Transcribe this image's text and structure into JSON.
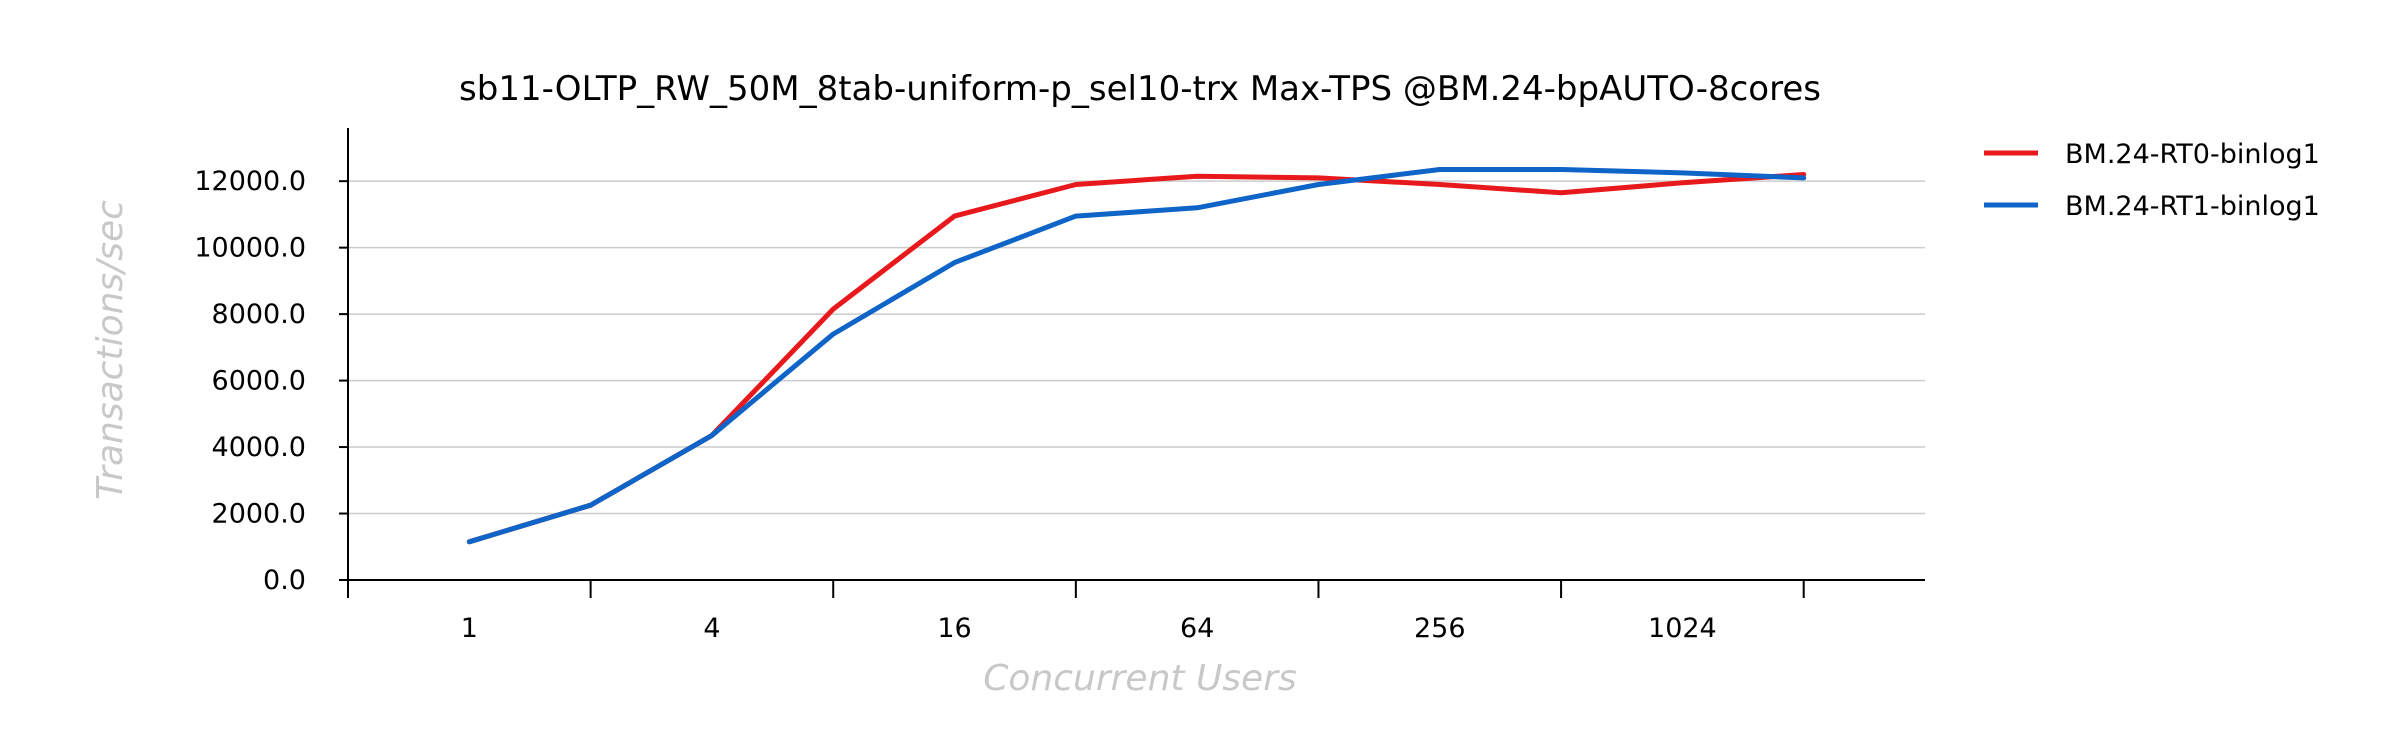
{
  "chart_data": {
    "type": "line",
    "title": "sb11-OLTP_RW_50M_8tab-uniform-p_sel10-trx Max-TPS @BM.24-bpAUTO-8cores",
    "xlabel": "Concurrent Users",
    "ylabel": "Transactions/sec",
    "x_scale": "log2",
    "x": [
      1,
      2,
      4,
      8,
      16,
      32,
      64,
      128,
      256,
      512,
      1024,
      2048
    ],
    "x_tick_labels": [
      "1",
      "4",
      "16",
      "64",
      "256",
      "1024"
    ],
    "x_tick_values": [
      1,
      4,
      16,
      64,
      256,
      1024
    ],
    "x_minor_ticks": [
      0.5,
      2,
      8,
      32,
      128,
      512,
      2048
    ],
    "xlim": [
      0.5,
      4096
    ],
    "y_ticks": [
      0,
      2000,
      4000,
      6000,
      8000,
      10000,
      12000
    ],
    "y_tick_labels": [
      "0.0",
      "2000.0",
      "4000.0",
      "6000.0",
      "8000.0",
      "10000.0",
      "12000.0"
    ],
    "ylim": [
      0,
      13600
    ],
    "grid": "horizontal",
    "legend_position": "top-right outside",
    "series": [
      {
        "name": "BM.24-RT0-binlog1",
        "color": "#e8191c",
        "values": [
          1150,
          2250,
          4350,
          8150,
          10950,
          11900,
          12150,
          12100,
          11900,
          11650,
          11950,
          12200
        ]
      },
      {
        "name": "BM.24-RT1-binlog1",
        "color": "#0f64c8",
        "values": [
          1150,
          2250,
          4350,
          7400,
          9550,
          10950,
          11200,
          11900,
          12350,
          12350,
          12250,
          12100
        ]
      }
    ]
  }
}
